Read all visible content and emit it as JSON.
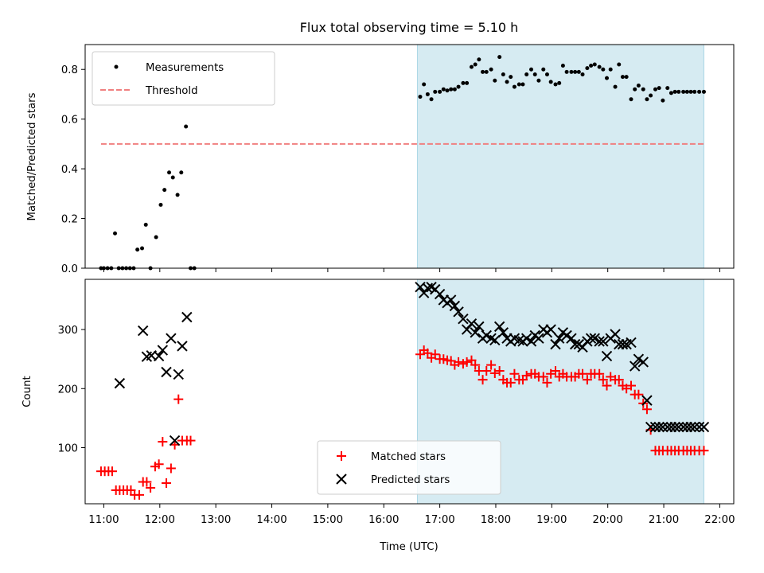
{
  "chart_data": [
    {
      "panel": "top",
      "type": "scatter",
      "title": "Flux total observing time = 5.10 h",
      "xlabel": "",
      "ylabel": "Matched/Predicted stars",
      "xlim": [
        "10:40",
        "22:15"
      ],
      "ylim": [
        0,
        0.9
      ],
      "yticks": [
        0.0,
        0.2,
        0.4,
        0.6,
        0.8
      ],
      "ytick_labels": [
        "0.0",
        "0.2",
        "0.4",
        "0.6",
        "0.8"
      ],
      "legend": {
        "placement": "upper-left",
        "entries": [
          "Measurements",
          "Threshold"
        ]
      },
      "highlight_span": {
        "start": "16:36",
        "end": "21:43",
        "color": "#add8e6"
      },
      "series": [
        {
          "name": "Measurements",
          "kind": "points",
          "color": "#000000",
          "x": [
            "10:57",
            "11:00",
            "11:04",
            "11:08",
            "11:12",
            "11:16",
            "11:20",
            "11:24",
            "11:28",
            "11:32",
            "11:36",
            "11:41",
            "11:45",
            "11:50",
            "11:56",
            "12:01",
            "12:05",
            "12:10",
            "12:14",
            "12:19",
            "12:23",
            "12:28",
            "12:33",
            "12:37",
            "16:39",
            "16:43",
            "16:47",
            "16:51",
            "16:55",
            "17:00",
            "17:04",
            "17:08",
            "17:12",
            "17:16",
            "17:20",
            "17:25",
            "17:29",
            "17:34",
            "17:38",
            "17:42",
            "17:46",
            "17:50",
            "17:55",
            "17:59",
            "18:04",
            "18:08",
            "18:12",
            "18:16",
            "18:20",
            "18:25",
            "18:29",
            "18:33",
            "18:38",
            "18:42",
            "18:46",
            "18:51",
            "18:55",
            "18:59",
            "19:04",
            "19:08",
            "19:12",
            "19:16",
            "19:21",
            "19:25",
            "19:29",
            "19:33",
            "19:38",
            "19:42",
            "19:46",
            "19:51",
            "19:55",
            "19:59",
            "20:03",
            "20:08",
            "20:12",
            "20:16",
            "20:20",
            "20:25",
            "20:29",
            "20:33",
            "20:38",
            "20:42",
            "20:46",
            "20:51",
            "20:55",
            "20:59",
            "21:04",
            "21:08",
            "21:12",
            "21:16",
            "21:21",
            "21:25",
            "21:29",
            "21:33",
            "21:38",
            "21:43"
          ],
          "y": [
            0.0,
            0.0,
            0.0,
            0.0,
            0.14,
            0.0,
            0.0,
            0.0,
            0.0,
            0.0,
            0.075,
            0.08,
            0.175,
            0.0,
            0.125,
            0.255,
            0.315,
            0.385,
            0.365,
            0.295,
            0.385,
            0.57,
            0.0,
            0.0,
            0.69,
            0.74,
            0.7,
            0.68,
            0.71,
            0.71,
            0.72,
            0.715,
            0.72,
            0.72,
            0.73,
            0.745,
            0.745,
            0.81,
            0.82,
            0.84,
            0.79,
            0.79,
            0.8,
            0.755,
            0.85,
            0.78,
            0.75,
            0.77,
            0.73,
            0.74,
            0.74,
            0.78,
            0.8,
            0.78,
            0.755,
            0.8,
            0.78,
            0.75,
            0.74,
            0.745,
            0.815,
            0.79,
            0.79,
            0.79,
            0.79,
            0.78,
            0.805,
            0.815,
            0.82,
            0.81,
            0.8,
            0.765,
            0.8,
            0.73,
            0.82,
            0.77,
            0.77,
            0.68,
            0.72,
            0.735,
            0.72,
            0.68,
            0.695,
            0.72,
            0.725,
            0.675,
            0.725,
            0.705,
            0.71,
            0.71,
            0.71,
            0.71,
            0.71,
            0.71,
            0.71,
            0.71
          ]
        },
        {
          "name": "Threshold",
          "kind": "dashed-line",
          "color": "#f08080",
          "x": [
            "10:57",
            "21:43"
          ],
          "y": [
            0.5,
            0.5
          ]
        }
      ]
    },
    {
      "panel": "bottom",
      "type": "scatter",
      "title": "",
      "xlabel": "Time (UTC)",
      "ylabel": "Count",
      "xlim": [
        "10:40",
        "22:15"
      ],
      "ylim": [
        5,
        385
      ],
      "xticks": [
        "11:00",
        "12:00",
        "13:00",
        "14:00",
        "15:00",
        "16:00",
        "17:00",
        "18:00",
        "19:00",
        "20:00",
        "21:00",
        "22:00"
      ],
      "yticks": [
        100,
        200,
        300
      ],
      "ytick_labels": [
        "100",
        "200",
        "300"
      ],
      "legend": {
        "placement": "lower-center",
        "entries": [
          "Matched stars",
          "Predicted stars"
        ]
      },
      "highlight_span": {
        "start": "16:36",
        "end": "21:43",
        "color": "#add8e6"
      },
      "series": [
        {
          "name": "Matched stars",
          "marker": "plus",
          "color": "#ff0000",
          "x": [
            "10:57",
            "11:01",
            "11:05",
            "11:09",
            "11:13",
            "11:17",
            "11:21",
            "11:25",
            "11:29",
            "11:33",
            "11:38",
            "11:42",
            "11:46",
            "11:50",
            "11:55",
            "11:59",
            "12:03",
            "12:07",
            "12:12",
            "12:16",
            "12:20",
            "12:24",
            "12:29",
            "12:33",
            "16:39",
            "16:43",
            "16:47",
            "16:51",
            "16:55",
            "17:00",
            "17:04",
            "17:08",
            "17:12",
            "17:16",
            "17:20",
            "17:25",
            "17:29",
            "17:34",
            "17:38",
            "17:42",
            "17:46",
            "17:50",
            "17:55",
            "17:59",
            "18:04",
            "18:08",
            "18:12",
            "18:16",
            "18:20",
            "18:25",
            "18:29",
            "18:33",
            "18:38",
            "18:42",
            "18:46",
            "18:51",
            "18:55",
            "18:59",
            "19:04",
            "19:08",
            "19:12",
            "19:16",
            "19:21",
            "19:25",
            "19:29",
            "19:33",
            "19:38",
            "19:42",
            "19:46",
            "19:51",
            "19:55",
            "19:59",
            "20:03",
            "20:08",
            "20:12",
            "20:16",
            "20:20",
            "20:25",
            "20:29",
            "20:33",
            "20:38",
            "20:42",
            "20:46",
            "20:51",
            "20:55",
            "20:59",
            "21:04",
            "21:08",
            "21:12",
            "21:16",
            "21:21",
            "21:25",
            "21:29",
            "21:33",
            "21:38",
            "21:43"
          ],
          "y": [
            60,
            60,
            60,
            60,
            28,
            28,
            28,
            28,
            28,
            20,
            20,
            42,
            42,
            32,
            68,
            72,
            110,
            40,
            65,
            105,
            182,
            112,
            112,
            112,
            258,
            265,
            260,
            252,
            258,
            250,
            250,
            248,
            247,
            240,
            245,
            242,
            245,
            248,
            240,
            230,
            215,
            230,
            240,
            226,
            230,
            215,
            210,
            210,
            225,
            215,
            215,
            222,
            225,
            225,
            220,
            220,
            210,
            225,
            230,
            220,
            225,
            220,
            220,
            220,
            225,
            225,
            215,
            225,
            225,
            225,
            215,
            205,
            220,
            215,
            215,
            205,
            200,
            205,
            190,
            190,
            175,
            165,
            130,
            95,
            95,
            95,
            95,
            95,
            95,
            95,
            95,
            95,
            95,
            95,
            95,
            95
          ]
        },
        {
          "name": "Predicted stars",
          "marker": "x",
          "color": "#000000",
          "x": [
            "11:17",
            "11:42",
            "11:46",
            "11:51",
            "11:59",
            "12:03",
            "12:07",
            "12:12",
            "12:16",
            "12:20",
            "12:24",
            "12:29",
            "16:39",
            "16:43",
            "16:47",
            "16:51",
            "16:55",
            "17:00",
            "17:04",
            "17:08",
            "17:12",
            "17:16",
            "17:20",
            "17:25",
            "17:29",
            "17:34",
            "17:38",
            "17:42",
            "17:46",
            "17:50",
            "17:55",
            "17:59",
            "18:04",
            "18:08",
            "18:12",
            "18:16",
            "18:20",
            "18:25",
            "18:29",
            "18:33",
            "18:38",
            "18:42",
            "18:46",
            "18:51",
            "18:55",
            "18:59",
            "19:04",
            "19:08",
            "19:12",
            "19:16",
            "19:21",
            "19:25",
            "19:29",
            "19:33",
            "19:38",
            "19:42",
            "19:46",
            "19:51",
            "19:55",
            "19:59",
            "20:03",
            "20:08",
            "20:12",
            "20:16",
            "20:20",
            "20:25",
            "20:29",
            "20:33",
            "20:38",
            "20:42",
            "20:46",
            "20:51",
            "20:55",
            "20:59",
            "21:04",
            "21:08",
            "21:12",
            "21:16",
            "21:21",
            "21:25",
            "21:29",
            "21:33",
            "21:38",
            "21:43"
          ],
          "y": [
            209,
            298,
            254,
            256,
            255,
            265,
            228,
            285,
            112,
            224,
            272,
            321,
            372,
            362,
            370,
            372,
            368,
            360,
            350,
            345,
            350,
            340,
            330,
            318,
            300,
            310,
            295,
            305,
            285,
            290,
            285,
            282,
            305,
            295,
            285,
            280,
            285,
            282,
            280,
            285,
            280,
            290,
            285,
            300,
            295,
            300,
            275,
            285,
            295,
            290,
            285,
            275,
            275,
            270,
            280,
            285,
            285,
            280,
            280,
            255,
            285,
            292,
            275,
            275,
            275,
            278,
            238,
            250,
            245,
            180,
            135,
            135,
            135,
            135,
            135,
            135,
            135,
            135,
            135,
            135,
            135,
            135,
            135,
            135
          ]
        }
      ]
    }
  ]
}
